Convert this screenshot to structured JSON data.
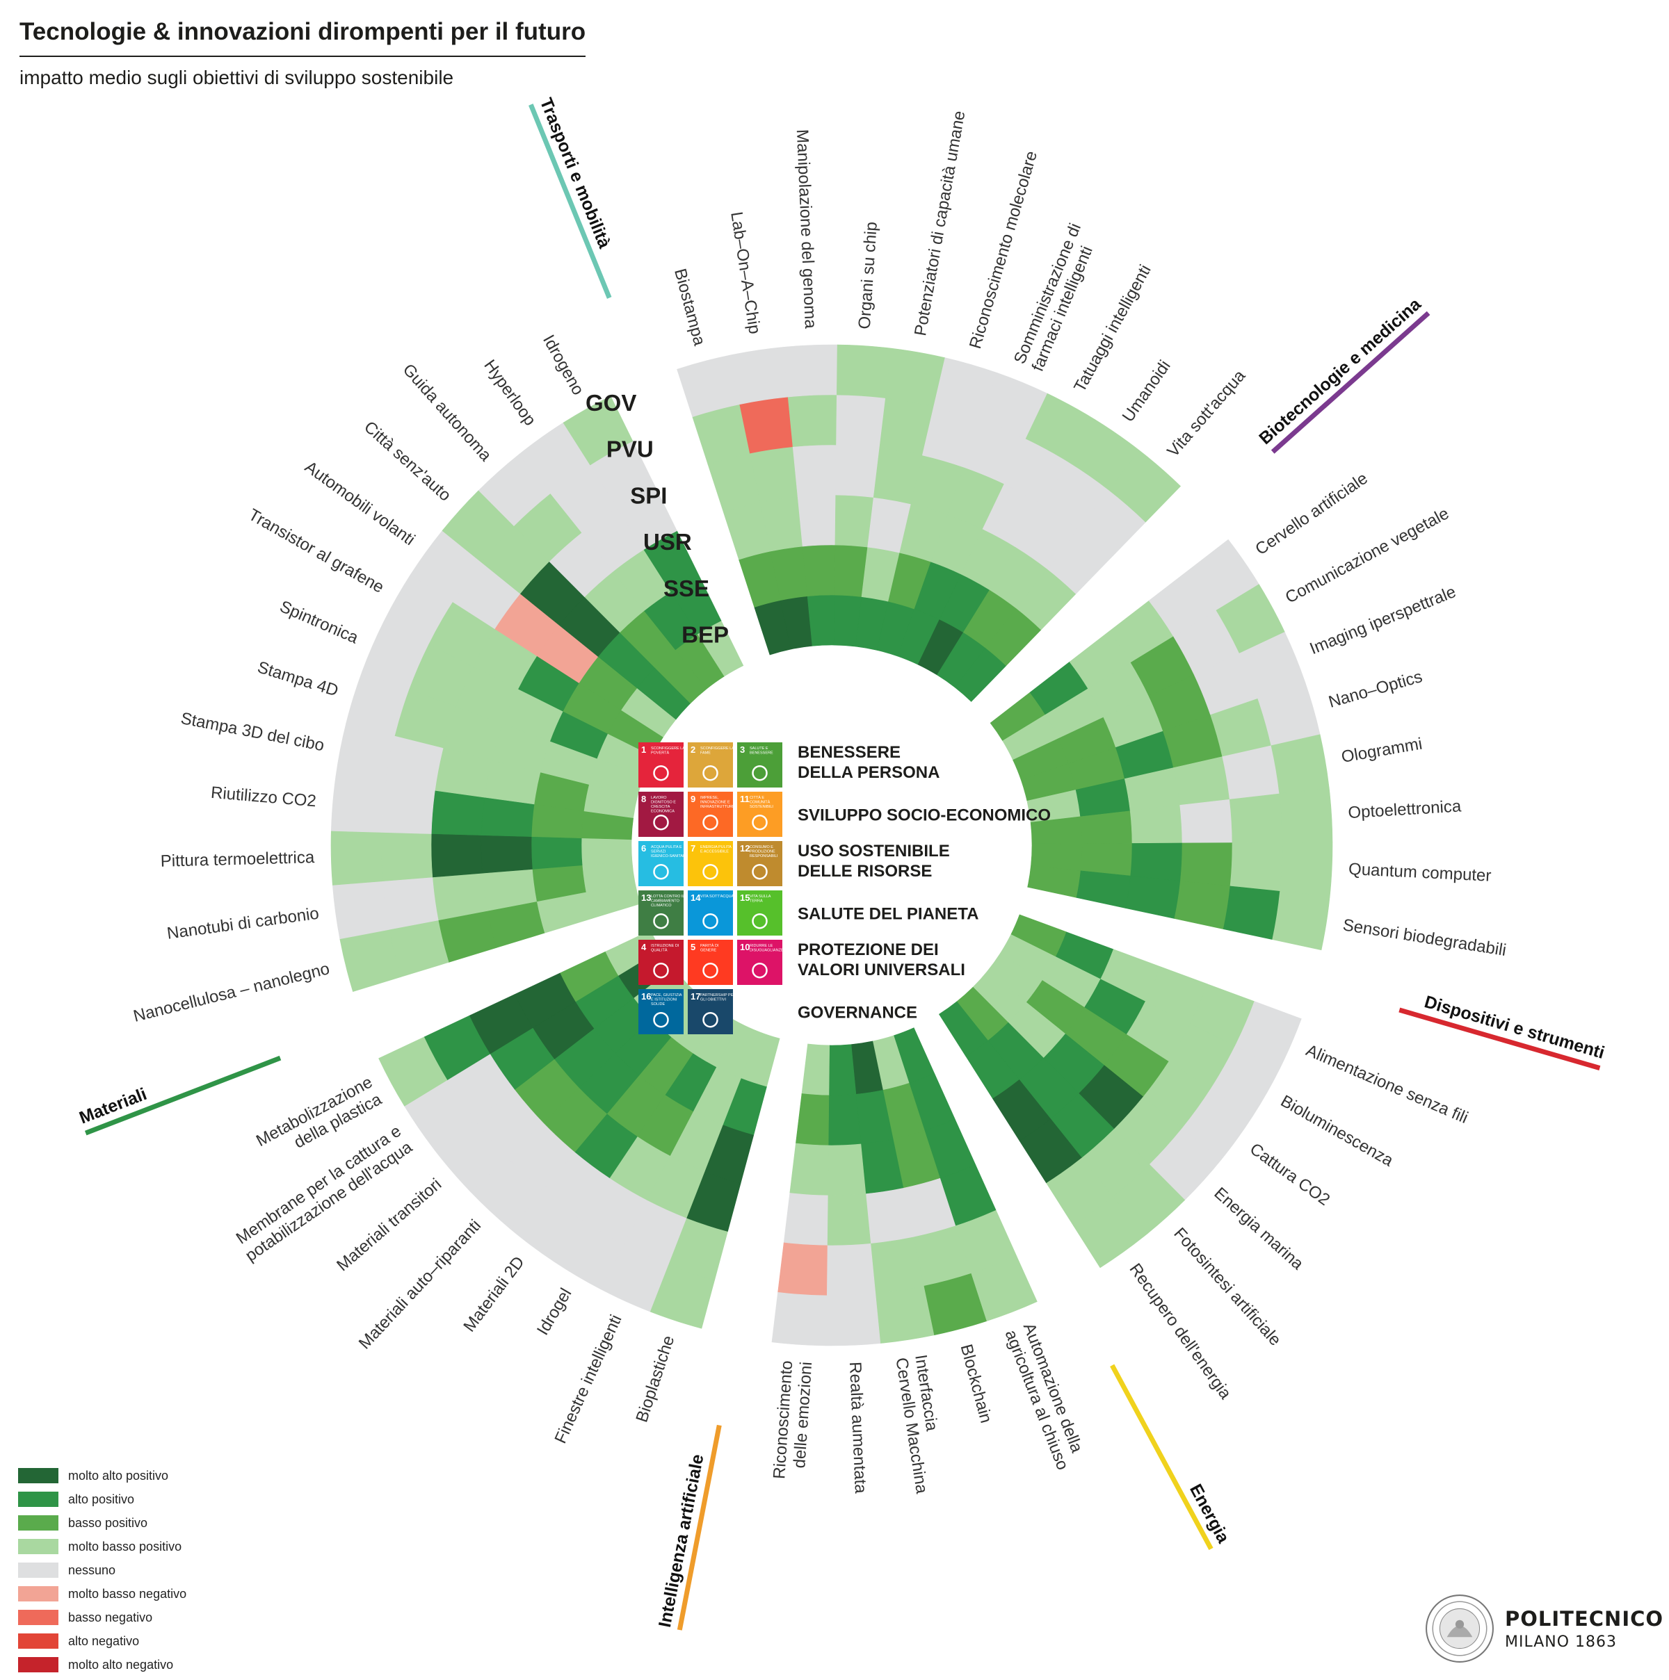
{
  "title": "Tecnologie & innovazioni dirompenti per il futuro",
  "subtitle": "impatto medio sugli obiettivi di sviluppo sostenibile",
  "colors": {
    "2": "#236635",
    "1": "#2f9447",
    "0.5": "#5aab4c",
    "0.25": "#a9d8a0",
    "0": "#dedfe0",
    "-0.25": "#f2a495",
    "-0.5": "#ef6a5a",
    "-1": "#e24537",
    "-2": "#c5232b"
  },
  "legend": [
    {
      "label": "molto alto positivo",
      "key": "2"
    },
    {
      "label": "alto positivo",
      "key": "1"
    },
    {
      "label": "basso positivo",
      "key": "0.5"
    },
    {
      "label": "molto basso positivo",
      "key": "0.25"
    },
    {
      "label": "nessuno",
      "key": "0"
    },
    {
      "label": "molto basso negativo",
      "key": "-0.25"
    },
    {
      "label": "basso negativo",
      "key": "-0.5"
    },
    {
      "label": "alto negativo",
      "key": "-1"
    },
    {
      "label": "molto alto negativo",
      "key": "-2"
    }
  ],
  "goal_legend": [
    {
      "label": "BENESSERE\nDELLA PERSONA",
      "sdgs": [
        {
          "n": "1",
          "t": "SCONFIGGERE LA POVERTÀ",
          "c": "#e5243b"
        },
        {
          "n": "2",
          "t": "SCONFIGGERE LA FAME",
          "c": "#dda63a"
        },
        {
          "n": "3",
          "t": "SALUTE E BENESSERE",
          "c": "#4c9f38"
        }
      ]
    },
    {
      "label": "SVILUPPO SOCIO-ECONOMICO",
      "sdgs": [
        {
          "n": "8",
          "t": "LAVORO DIGNITOSO E CRESCITA ECONOMICA",
          "c": "#a21942"
        },
        {
          "n": "9",
          "t": "IMPRESE, INNOVAZIONE E INFRASTRUTTURE",
          "c": "#fd6925"
        },
        {
          "n": "11",
          "t": "CITTÀ E COMUNITÀ SOSTENIBILI",
          "c": "#fd9d24"
        }
      ]
    },
    {
      "label": "USO SOSTENIBILE\nDELLE RISORSE",
      "sdgs": [
        {
          "n": "6",
          "t": "ACQUA PULITA E SERVIZI IGIENICO-SANITARI",
          "c": "#26bde2"
        },
        {
          "n": "7",
          "t": "ENERGIA PULITA E ACCESSIBILE",
          "c": "#fcc30b"
        },
        {
          "n": "12",
          "t": "CONSUMO E PRODUZIONE RESPONSABILI",
          "c": "#bf8b2e"
        }
      ]
    },
    {
      "label": "SALUTE DEL PIANETA",
      "sdgs": [
        {
          "n": "13",
          "t": "LOTTA CONTRO IL CAMBIAMENTO CLIMATICO",
          "c": "#3f7e44"
        },
        {
          "n": "14",
          "t": "VITA SOTT'ACQUA",
          "c": "#0a97d9"
        },
        {
          "n": "15",
          "t": "VITA SULLA TERRA",
          "c": "#56c02b"
        }
      ]
    },
    {
      "label": "PROTEZIONE DEI\nVALORI UNIVERSALI",
      "sdgs": [
        {
          "n": "4",
          "t": "ISTRUZIONE DI QUALITÀ",
          "c": "#c5192d"
        },
        {
          "n": "5",
          "t": "PARITÀ DI GENERE",
          "c": "#ff3a21"
        },
        {
          "n": "10",
          "t": "RIDURRE LE DISUGUAGLIANZE",
          "c": "#dd1367"
        }
      ]
    },
    {
      "label": "GOVERNANCE",
      "sdgs": [
        {
          "n": "16",
          "t": "PACE, GIUSTIZIA E ISTITUZIONI SOLIDE",
          "c": "#00689d"
        },
        {
          "n": "17",
          "t": "PARTNERSHIP PER GLI OBIETTIVI",
          "c": "#19486a"
        }
      ]
    }
  ],
  "logo": {
    "name": "POLITECNICO",
    "sub": "MILANO 1863"
  },
  "chart_data": {
    "type": "heatmap",
    "layout": "radial",
    "rings": [
      "BEP",
      "SSE",
      "USR",
      "SPI",
      "PVU",
      "GOV"
    ],
    "value_scale": {
      "2": "molto alto positivo",
      "1": "alto positivo",
      "0.5": "basso positivo",
      "0.25": "molto basso positivo",
      "0": "nessuno",
      "-0.25": "molto basso negativo",
      "-0.5": "basso negativo",
      "-1": "alto negativo",
      "-2": "molto alto negativo"
    },
    "categories": [
      {
        "name": "Biotecnologie e medicina",
        "color": "#7b3a8f",
        "items": [
          {
            "label": "Biostampa",
            "values": [
              2,
              0.5,
              0.25,
              0.25,
              0.25,
              0
            ]
          },
          {
            "label": "Lab–On–A–Chip",
            "values": [
              2,
              0.5,
              0.25,
              0.25,
              -0.5,
              0
            ]
          },
          {
            "label": "Manipolazione del genoma",
            "values": [
              1,
              0.5,
              0,
              0,
              0.25,
              0
            ]
          },
          {
            "label": "Organi su chip",
            "values": [
              1,
              0.5,
              0.25,
              0,
              0,
              0.25
            ]
          },
          {
            "label": "Potenziatori di capacità umane",
            "values": [
              1,
              0.25,
              0,
              0.25,
              0.25,
              0.25
            ]
          },
          {
            "label": "Riconoscimento molecolare",
            "values": [
              1,
              0.5,
              0.25,
              0.25,
              0,
              0
            ]
          },
          {
            "label": "Somministrazione di\nfarmaci intelligenti",
            "values": [
              1,
              1,
              0.25,
              0.25,
              0,
              0
            ]
          },
          {
            "label": "Tatuaggi intelligenti",
            "values": [
              2,
              1,
              0.25,
              0,
              0,
              0.25
            ]
          },
          {
            "label": "Umanoidi",
            "values": [
              1,
              0.5,
              0.25,
              0,
              0,
              0.25
            ]
          },
          {
            "label": "Vita sott'acqua",
            "values": [
              1,
              0.5,
              0.25,
              0,
              0,
              0.25
            ]
          }
        ]
      },
      {
        "name": "Dispositivi e strumenti",
        "color": "#d7282f",
        "items": [
          {
            "label": "Cervello artificiale",
            "values": [
              0.5,
              1,
              0.25,
              0.25,
              0,
              0
            ]
          },
          {
            "label": "Comunicazione vegetale",
            "values": [
              0.25,
              0.25,
              0.25,
              0.5,
              0,
              0.25
            ]
          },
          {
            "label": "Imaging iperspettrale",
            "values": [
              0.5,
              0.5,
              0.25,
              0.5,
              0,
              0
            ]
          },
          {
            "label": "Nano–Optics",
            "values": [
              0.5,
              0.5,
              1,
              0.5,
              0.25,
              0
            ]
          },
          {
            "label": "Ologrammi",
            "values": [
              0.25,
              1,
              0.25,
              0.25,
              0,
              0.25
            ]
          },
          {
            "label": "Optoelettronica",
            "values": [
              0.5,
              0.5,
              0.25,
              0,
              0.25,
              0.25
            ]
          },
          {
            "label": "Quantum computer",
            "values": [
              0.5,
              0.5,
              1,
              0.5,
              0.25,
              0.25
            ]
          },
          {
            "label": "Sensori biodegradabili",
            "values": [
              0.5,
              1,
              1,
              0.5,
              1,
              0.25
            ]
          }
        ]
      },
      {
        "name": "Energia",
        "color": "#f0d21d",
        "items": [
          {
            "label": "Alimentazione senza fili",
            "values": [
              0.5,
              1,
              0.25,
              0.25,
              0.25,
              0
            ]
          },
          {
            "label": "Bioluminescenza",
            "values": [
              0.25,
              0.25,
              1,
              0.25,
              0.25,
              0
            ]
          },
          {
            "label": "Cattura CO2",
            "values": [
              0.25,
              0.5,
              0.5,
              0.5,
              0.25,
              0
            ]
          },
          {
            "label": "Energia marina",
            "values": [
              0.25,
              0.25,
              1,
              2,
              0.25,
              0
            ]
          },
          {
            "label": "Fotosintesi artificiale",
            "values": [
              0.5,
              1,
              1,
              1,
              0.25,
              0.25
            ]
          },
          {
            "label": "Recupero dell'energia",
            "values": [
              1,
              1,
              2,
              2,
              0.25,
              0.25
            ]
          }
        ]
      },
      {
        "name": "Intelligenza artificiale",
        "color": "#ef9c2b",
        "items": [
          {
            "label": "Automazione della\nagricoltura al chiuso",
            "values": [
              1,
              1,
              1,
              1,
              0.25,
              0.25
            ]
          },
          {
            "label": "Blockchain",
            "values": [
              0.25,
              0.5,
              0.5,
              0,
              0.25,
              0.5
            ]
          },
          {
            "label": "Interfaccia\nCervello Macchina",
            "values": [
              2,
              1,
              1,
              0,
              0.25,
              0.25
            ]
          },
          {
            "label": "Realtà aumentata",
            "values": [
              1,
              1,
              0.25,
              0.25,
              0,
              0
            ]
          },
          {
            "label": "Riconoscimento\ndelle emozioni",
            "values": [
              0.25,
              0.5,
              0.25,
              0,
              -0.25,
              0
            ]
          }
        ]
      },
      {
        "name": "Materiali",
        "color": "#2f9447",
        "items": [
          {
            "label": "Bioplastiche",
            "values": [
              0.25,
              1,
              2,
              2,
              0.25,
              0.25
            ]
          },
          {
            "label": "Finestre intelligenti",
            "values": [
              0.25,
              0.25,
              0.25,
              0.25,
              0,
              0
            ]
          },
          {
            "label": "Idrogel",
            "values": [
              0.25,
              1,
              0.5,
              0.25,
              0,
              0
            ]
          },
          {
            "label": "Materiali 2D",
            "values": [
              0.25,
              0.5,
              0.5,
              1,
              0,
              0
            ]
          },
          {
            "label": "Materiali auto–riparanti",
            "values": [
              0.25,
              1,
              1,
              0.5,
              0,
              0
            ]
          },
          {
            "label": "Materiali transitori",
            "values": [
              0.25,
              1,
              1,
              0.5,
              0,
              0
            ]
          },
          {
            "label": "Membrane per la cattura e\npotabilizzazione dell'acqua",
            "values": [
              2,
              1,
              2,
              1,
              0,
              0
            ]
          },
          {
            "label": "Metabolizzazione\ndella plastica",
            "values": [
              0.25,
              0.5,
              2,
              2,
              1,
              0.25
            ]
          }
        ]
      },
      {
        "name": "Trasporti e mobilità",
        "color": "#6cc7b3",
        "items": [
          {
            "label": "Nanocellulosa – nanolegno",
            "values": [
              0.25,
              0.25,
              0.5,
              0.5,
              0.25,
              0.25
            ]
          },
          {
            "label": "Nanotubi di carbonio",
            "values": [
              0.25,
              0.5,
              0.25,
              0.25,
              0,
              0
            ]
          },
          {
            "label": "Pittura termoelettrica",
            "values": [
              0.25,
              1,
              2,
              2,
              0.25,
              0.25
            ]
          },
          {
            "label": "Riutilizzo CO2",
            "values": [
              0.5,
              0.5,
              1,
              1,
              0,
              0
            ]
          },
          {
            "label": "Stampa 3D del cibo",
            "values": [
              0.25,
              0.5,
              0.25,
              0.25,
              0,
              0
            ]
          },
          {
            "label": "Stampa 4D",
            "values": [
              0.25,
              0.25,
              0.25,
              0.25,
              0.25,
              0
            ]
          },
          {
            "label": "Spintronica",
            "values": [
              0.25,
              1,
              0.25,
              0.25,
              0.25,
              0
            ]
          },
          {
            "label": "Transistor al grafene",
            "values": [
              0.5,
              0.5,
              1,
              0.25,
              0.25,
              0
            ]
          },
          {
            "label": "Automobili volanti",
            "values": [
              0.25,
              0.5,
              -0.25,
              -0.25,
              0,
              0
            ]
          },
          {
            "label": "Città senz'auto",
            "values": [
              1,
              1,
              2,
              2,
              0.25,
              0.25
            ]
          },
          {
            "label": "Guida autonoma",
            "values": [
              0.5,
              0.5,
              0.25,
              0,
              0.25,
              0
            ]
          },
          {
            "label": "Hyperloop",
            "values": [
              0.5,
              1,
              0.25,
              0,
              0,
              0
            ]
          },
          {
            "label": "Idrogeno",
            "values": [
              0.25,
              1,
              1,
              0,
              0,
              0.25
            ]
          }
        ]
      }
    ]
  }
}
